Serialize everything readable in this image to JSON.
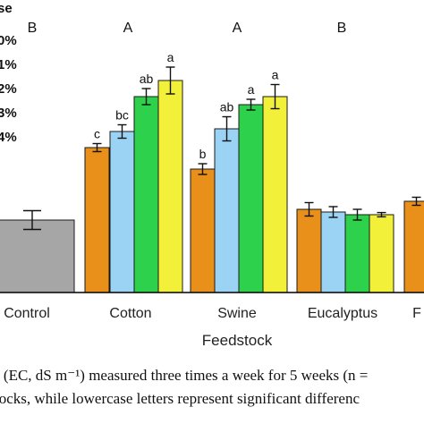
{
  "chart_data": {
    "type": "bar",
    "xlabel": "Feedstock",
    "categories": [
      "Control",
      "Cotton",
      "Swine",
      "Eucalyptus",
      "F"
    ],
    "category_labels": [
      "Control",
      "Cotton",
      "Swine",
      "Eucalyptus",
      "F"
    ],
    "uppercase_letters": [
      "B",
      "A",
      "A",
      "B"
    ],
    "legend_labels": [
      "se",
      "0%",
      "1%",
      "2%",
      "3%",
      "4%"
    ],
    "series_colors": [
      "#e8901a",
      "#9bd3f4",
      "#2ed14c",
      "#f3f03a"
    ],
    "control_color": "#a6a6a6",
    "ylim": [
      0,
      100
    ],
    "bars": [
      {
        "category": "Control",
        "value": 27,
        "err": 3.5,
        "color": "#a6a6a6",
        "label": ""
      },
      {
        "category": "Cotton",
        "value": 54,
        "err": 1.5,
        "color": "#e8901a",
        "label": "c"
      },
      {
        "category": "Cotton",
        "value": 60,
        "err": 2.5,
        "color": "#9bd3f4",
        "label": "bc"
      },
      {
        "category": "Cotton",
        "value": 73,
        "err": 3.0,
        "color": "#2ed14c",
        "label": "ab"
      },
      {
        "category": "Cotton",
        "value": 79,
        "err": 5.0,
        "color": "#f3f03a",
        "label": "a"
      },
      {
        "category": "Swine",
        "value": 46,
        "err": 2.0,
        "color": "#e8901a",
        "label": "b"
      },
      {
        "category": "Swine",
        "value": 61,
        "err": 4.5,
        "color": "#9bd3f4",
        "label": "ab"
      },
      {
        "category": "Swine",
        "value": 70,
        "err": 2.0,
        "color": "#2ed14c",
        "label": "a"
      },
      {
        "category": "Swine",
        "value": 73,
        "err": 4.5,
        "color": "#f3f03a",
        "label": "a"
      },
      {
        "category": "Eucalyptus",
        "value": 31,
        "err": 2.5,
        "color": "#e8901a",
        "label": ""
      },
      {
        "category": "Eucalyptus",
        "value": 30,
        "err": 2.0,
        "color": "#9bd3f4",
        "label": ""
      },
      {
        "category": "Eucalyptus",
        "value": 29,
        "err": 2.0,
        "color": "#2ed14c",
        "label": ""
      },
      {
        "category": "Eucalyptus",
        "value": 29,
        "err": 0.8,
        "color": "#f3f03a",
        "label": ""
      },
      {
        "category": "F",
        "value": 34,
        "err": 1.5,
        "color": "#e8901a",
        "label": ""
      }
    ]
  },
  "caption": {
    "line1": "r (EC, dS m⁻¹) measured three times a week for 5 weeks (n =",
    "line2": "tocks, while lowercase letters represent significant differenc"
  }
}
